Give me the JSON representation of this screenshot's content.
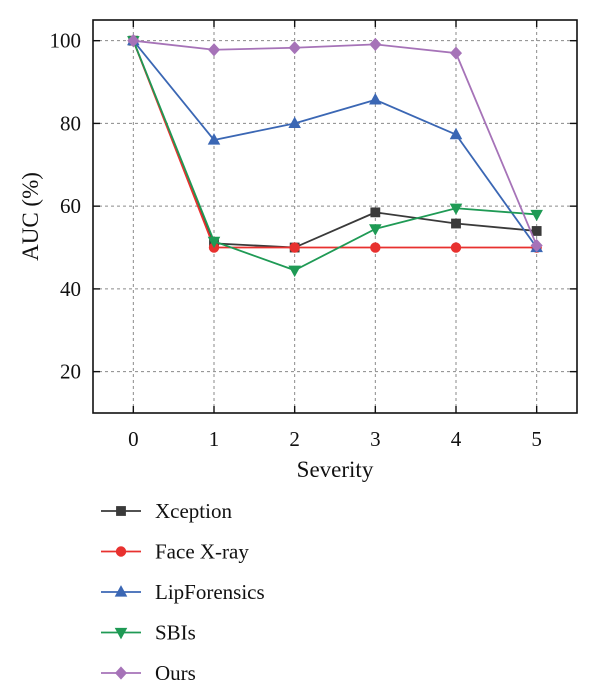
{
  "chart_data": {
    "type": "line",
    "xlabel": "Severity",
    "ylabel": "AUC (%)",
    "x": [
      0,
      1,
      2,
      3,
      4,
      5
    ],
    "xlim": [
      -0.5,
      5.5
    ],
    "ylim": [
      10,
      105
    ],
    "xticks": [
      "0",
      "1",
      "2",
      "3",
      "4",
      "5"
    ],
    "yticks": [
      20,
      40,
      60,
      80,
      100
    ],
    "grid": true,
    "legend_position": "bottom",
    "series": [
      {
        "name": "Xception",
        "color": "#3a3a3a",
        "marker": "square",
        "values": [
          100,
          51,
          50,
          58.5,
          55.8,
          54
        ]
      },
      {
        "name": "Face X-ray",
        "color": "#e8312f",
        "marker": "circle",
        "values": [
          100,
          50,
          50,
          50,
          50,
          50
        ]
      },
      {
        "name": "LipForensics",
        "color": "#3b67b4",
        "marker": "triangle-up",
        "values": [
          100,
          76,
          80,
          85.7,
          77.3,
          50
        ]
      },
      {
        "name": "SBIs",
        "color": "#1f9a55",
        "marker": "triangle-down",
        "values": [
          100,
          51.5,
          44.5,
          54.5,
          59.5,
          58
        ]
      },
      {
        "name": "Ours",
        "color": "#a673b8",
        "marker": "diamond",
        "values": [
          100,
          97.8,
          98.3,
          99.1,
          97,
          50.5
        ]
      }
    ]
  }
}
